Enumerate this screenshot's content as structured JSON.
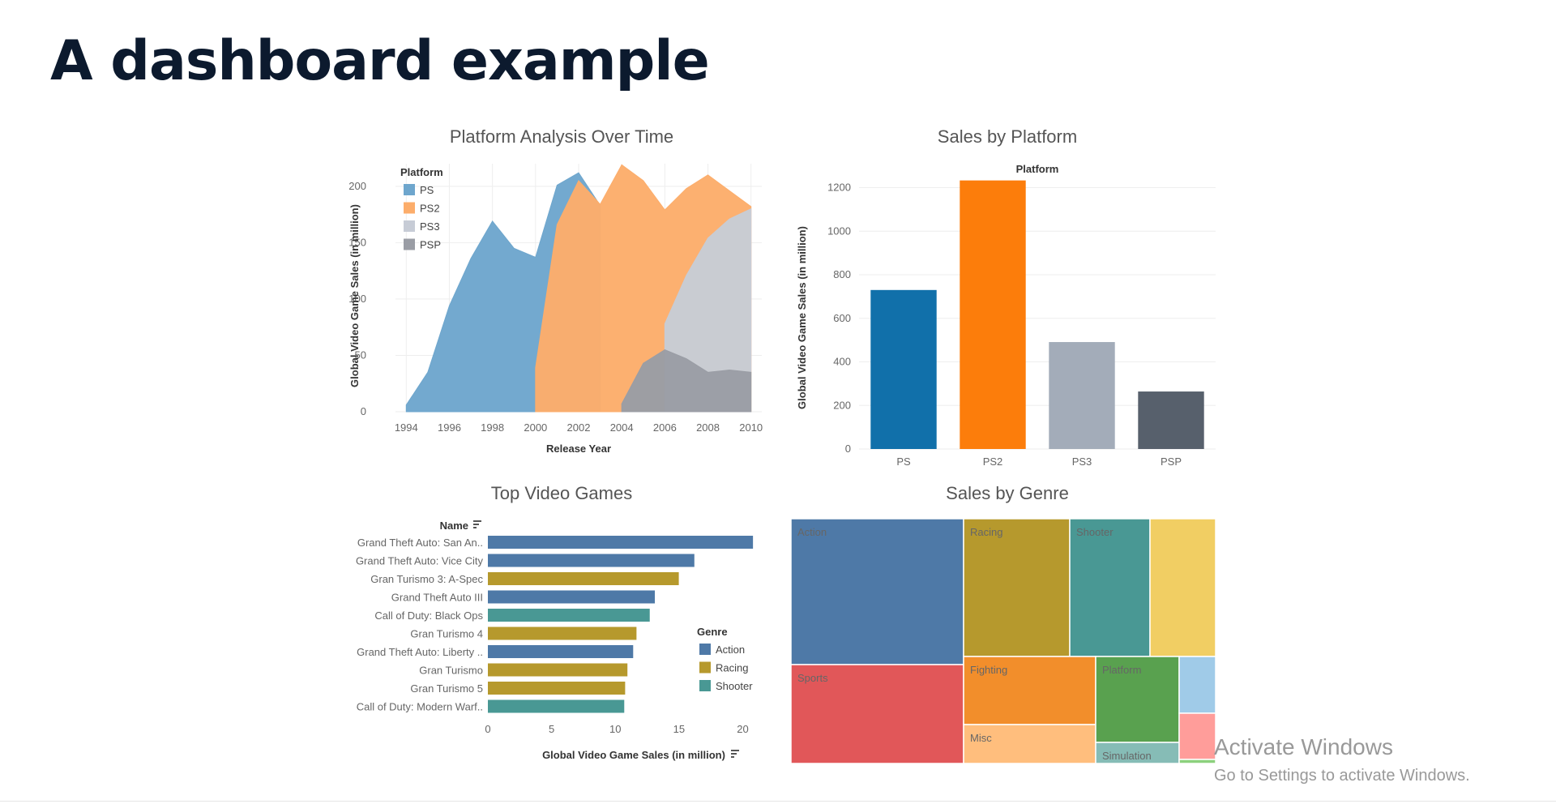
{
  "page": {
    "title": "A dashboard example"
  },
  "colors": {
    "PS": "#6ea6cd",
    "PS2": "#fcad6b",
    "PS3": "#c7ccd6",
    "PSP": "#9a9da5",
    "bar_PS": "#1170aa",
    "bar_PS2": "#fc7d0b",
    "bar_PS3": "#a3acb9",
    "bar_PSP": "#57606c",
    "Action": "#4e79a7",
    "Racing": "#b6992d",
    "Shooter": "#499894",
    "Sports": "#e15759",
    "Fighting": "#f28e2b",
    "Misc": "#ffbe7d",
    "Platform": "#59a14f",
    "Simulation": "#8cd17d",
    "Role-Playing": "#f1ce63",
    "Adventure": "#a0cbe8",
    "Strategy": "#ff9d9a",
    "Puzzle": "#86bcb6"
  },
  "watermark": {
    "main": "Activate Windows",
    "sub": "Go to Settings to activate Windows."
  },
  "chart_data": [
    {
      "type": "area",
      "title": "Platform Analysis Over Time",
      "xlabel": "Release Year",
      "ylabel": "Global Video Game Sales (in million)",
      "xlim": [
        1993.5,
        2010.5
      ],
      "ylim": [
        0,
        220
      ],
      "xticks": [
        1994,
        1996,
        1998,
        2000,
        2002,
        2004,
        2006,
        2008,
        2010
      ],
      "yticks": [
        0,
        50,
        100,
        150,
        200
      ],
      "grid": true,
      "legend_title": "Platform",
      "legend_position": "top-left",
      "series": [
        {
          "name": "PS",
          "x": [
            1994,
            1995,
            1996,
            1997,
            1998,
            1999,
            2000,
            2001,
            2002,
            2003
          ],
          "values": [
            6,
            35,
            94,
            136,
            169,
            145,
            137,
            201,
            212,
            183
          ]
        },
        {
          "name": "PS2",
          "x": [
            2000,
            2001,
            2002,
            2003,
            2004,
            2005,
            2006,
            2007,
            2008,
            2009,
            2010
          ],
          "values": [
            39,
            166,
            205,
            184,
            219,
            205,
            179,
            198,
            210,
            196,
            182
          ]
        },
        {
          "name": "PS3",
          "x": [
            2006,
            2007,
            2008,
            2009,
            2010
          ],
          "values": [
            78,
            121,
            154,
            171,
            180
          ]
        },
        {
          "name": "PSP",
          "x": [
            2004,
            2005,
            2006,
            2007,
            2008,
            2009,
            2010
          ],
          "values": [
            7,
            43,
            55,
            47,
            35,
            37,
            35
          ]
        }
      ]
    },
    {
      "type": "bar",
      "title": "Sales by Platform",
      "xlabel": "Platform",
      "ylabel": "Global Video Game Sales (in million)",
      "categories": [
        "PS",
        "PS2",
        "PS3",
        "PSP"
      ],
      "values": [
        730,
        1233,
        491,
        264
      ],
      "ylim": [
        0,
        1280
      ],
      "yticks": [
        0,
        200,
        400,
        600,
        800,
        1000,
        1200
      ],
      "grid": true
    },
    {
      "type": "bar",
      "orientation": "horizontal",
      "title": "Top Video Games",
      "xlabel": "Global Video Game Sales (in million)",
      "ylabel": "Name",
      "xlim": [
        0,
        22
      ],
      "xticks": [
        0,
        5,
        10,
        15,
        20
      ],
      "legend_title": "Genre",
      "legend_position": "bottom-right",
      "legend": [
        "Action",
        "Racing",
        "Shooter"
      ],
      "categories": [
        "Grand Theft Auto: San An..",
        "Grand Theft Auto: Vice City",
        "Gran Turismo 3: A-Spec",
        "Grand Theft Auto III",
        "Call of Duty: Black Ops",
        "Gran Turismo 4",
        "Grand Theft Auto: Liberty ..",
        "Gran Turismo",
        "Gran Turismo 5",
        "Call of Duty: Modern Warf.."
      ],
      "values": [
        20.8,
        16.2,
        14.98,
        13.1,
        12.7,
        11.66,
        11.4,
        10.95,
        10.77,
        10.7
      ],
      "genres": [
        "Action",
        "Action",
        "Racing",
        "Action",
        "Shooter",
        "Racing",
        "Action",
        "Racing",
        "Racing",
        "Shooter"
      ]
    },
    {
      "type": "treemap",
      "title": "Sales by Genre",
      "labels": [
        "Action",
        "Racing",
        "Shooter",
        "Sports",
        "Fighting",
        "Misc",
        "Platform",
        "Simulation"
      ],
      "unlabeled_tiles": 6
    }
  ]
}
